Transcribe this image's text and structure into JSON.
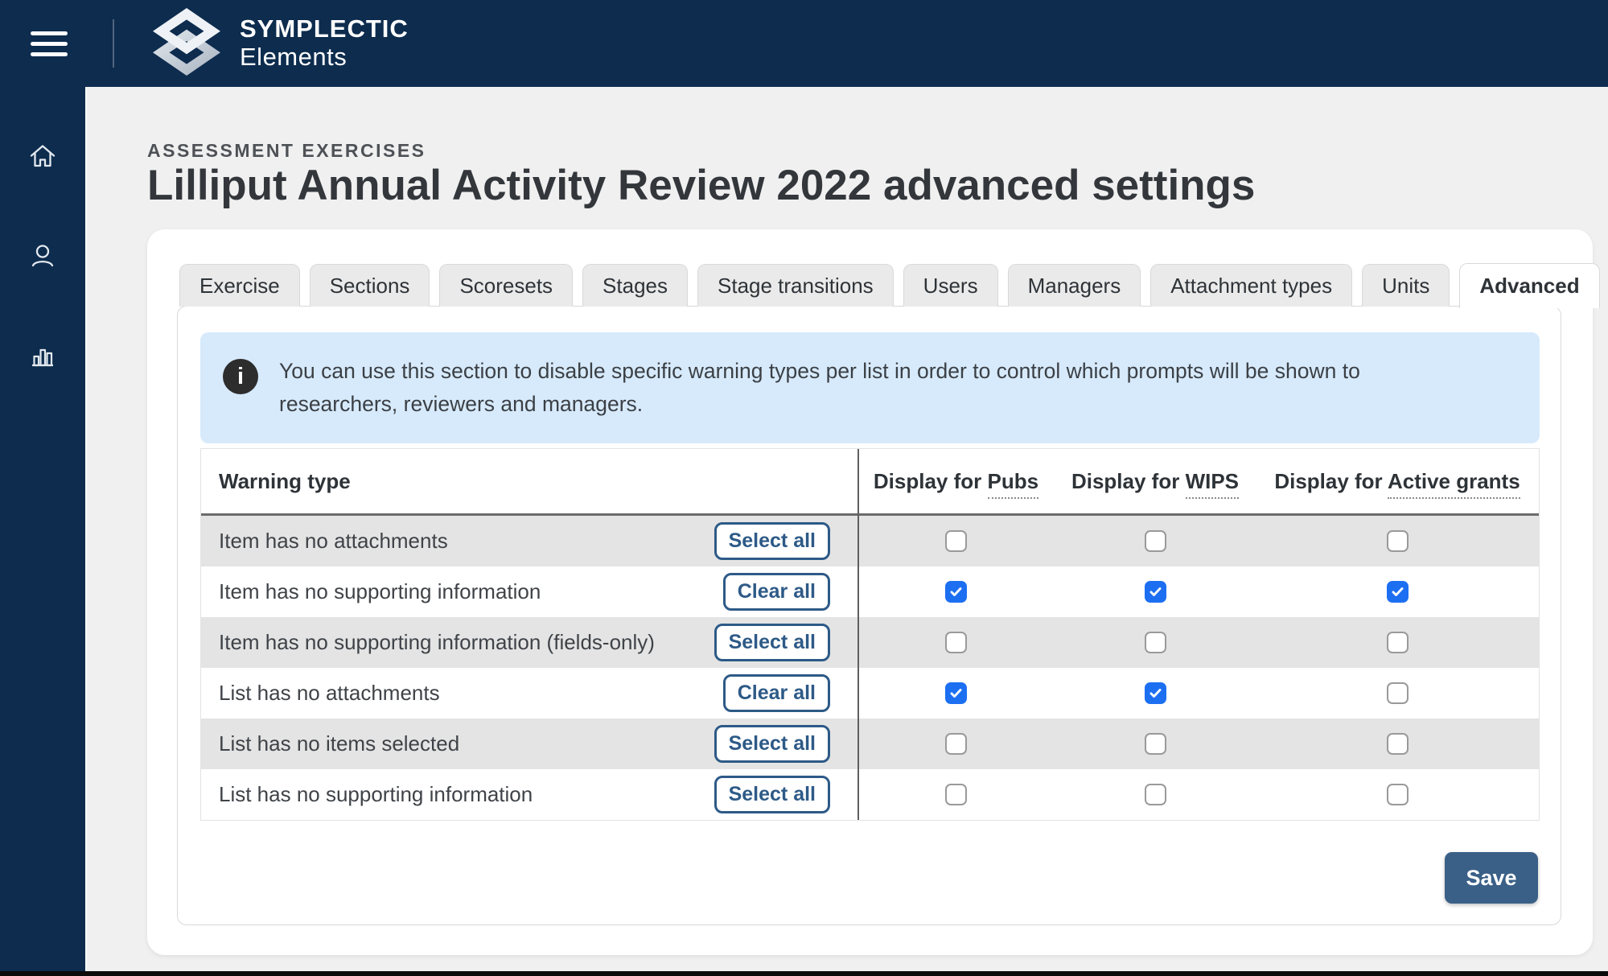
{
  "brand": {
    "line1": "SYMPLECTIC",
    "line2": "Elements"
  },
  "topbar": {
    "menu_icon": "hamburger-icon",
    "logo_icon": "symplectic-diamond-logo"
  },
  "sidebar": {
    "items": [
      {
        "icon": "home-icon"
      },
      {
        "icon": "user-icon"
      },
      {
        "icon": "bar-chart-icon"
      }
    ]
  },
  "page": {
    "eyebrow": "ASSESSMENT EXERCISES",
    "title": "Lilliput Annual Activity Review 2022 advanced settings"
  },
  "tabs": [
    {
      "label": "Exercise",
      "active": false
    },
    {
      "label": "Sections",
      "active": false
    },
    {
      "label": "Scoresets",
      "active": false
    },
    {
      "label": "Stages",
      "active": false
    },
    {
      "label": "Stage transitions",
      "active": false
    },
    {
      "label": "Users",
      "active": false
    },
    {
      "label": "Managers",
      "active": false
    },
    {
      "label": "Attachment types",
      "active": false
    },
    {
      "label": "Units",
      "active": false
    },
    {
      "label": "Advanced",
      "active": true
    }
  ],
  "info": {
    "icon": "info-icon",
    "icon_glyph": "i",
    "text": "You can use this section to disable specific warning types per list in order to control which prompts will be shown to researchers, reviewers and managers."
  },
  "table": {
    "warning_header": "Warning type",
    "columns": [
      {
        "prefix": "Display for",
        "term": "Pubs"
      },
      {
        "prefix": "Display for",
        "term": "WIPS"
      },
      {
        "prefix": "Display for",
        "term": "Active grants"
      }
    ],
    "rows": [
      {
        "label": "Item has no attachments",
        "action": "Select all",
        "checks": [
          false,
          false,
          false
        ]
      },
      {
        "label": "Item has no supporting information",
        "action": "Clear all",
        "checks": [
          true,
          true,
          true
        ]
      },
      {
        "label": "Item has no supporting information (fields-only)",
        "action": "Select all",
        "checks": [
          false,
          false,
          false
        ]
      },
      {
        "label": "List has no attachments",
        "action": "Clear all",
        "checks": [
          true,
          true,
          false
        ]
      },
      {
        "label": "List has no items selected",
        "action": "Select all",
        "checks": [
          false,
          false,
          false
        ]
      },
      {
        "label": "List has no supporting information",
        "action": "Select all",
        "checks": [
          false,
          false,
          false
        ]
      }
    ]
  },
  "save_label": "Save",
  "colors": {
    "navy": "#0d2c4e",
    "accent_blue": "#1d6ff2",
    "button_navy": "#2d5a87",
    "save_navy": "#3a6087",
    "info_bg": "#d7eafc",
    "row_alt": "#e4e4e4"
  }
}
